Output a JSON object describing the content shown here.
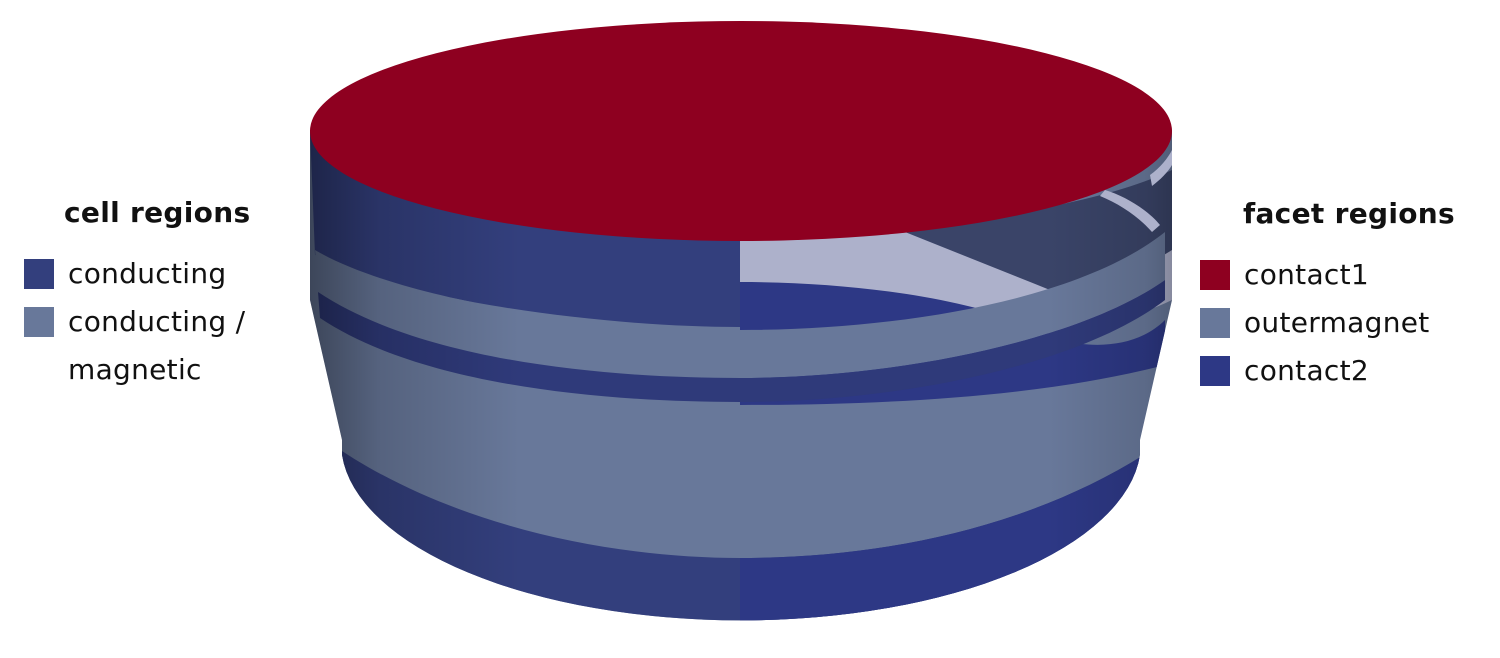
{
  "cell_legend": {
    "title": "cell regions",
    "items": [
      {
        "label": "conducting",
        "color": "#333f7d"
      },
      {
        "label": "conducting /",
        "label2": "magnetic",
        "color": "#68789a"
      }
    ]
  },
  "facet_legend": {
    "title": "facet regions",
    "items": [
      {
        "label": "contact1",
        "color": "#8e0020"
      },
      {
        "label": "outermagnet",
        "color": "#68789a"
      },
      {
        "label": "contact2",
        "color": "#2d3885"
      }
    ]
  },
  "colors": {
    "top_face": "#8e0020",
    "conducting": "#333f7d",
    "magnetic": "#68789a",
    "inner_band": "#2d3885",
    "cutaway_light": "#adb1cb"
  }
}
